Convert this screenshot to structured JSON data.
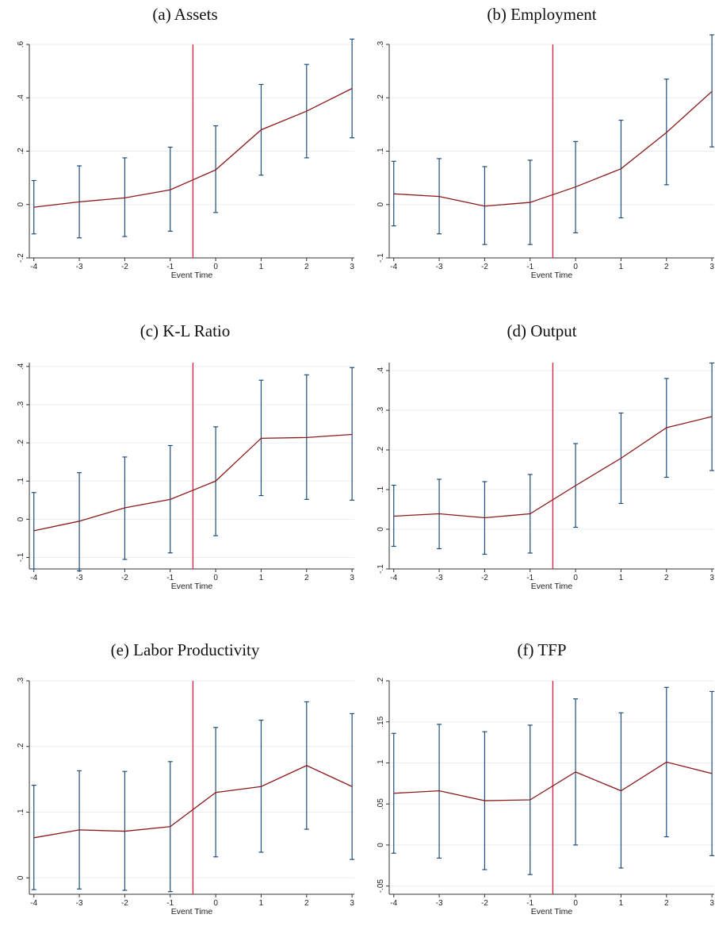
{
  "chart_data": [
    {
      "type": "line",
      "title": "(a) Assets",
      "xlabel": "Event Time",
      "x": [
        -4,
        -3,
        -2,
        -1,
        0,
        1,
        2,
        3
      ],
      "values": [
        -0.01,
        0.01,
        0.025,
        0.055,
        0.13,
        0.28,
        0.35,
        0.435
      ],
      "ci_lower": [
        -0.11,
        -0.125,
        -0.12,
        -0.1,
        -0.03,
        0.11,
        0.175,
        0.25
      ],
      "ci_upper": [
        0.09,
        0.145,
        0.175,
        0.215,
        0.295,
        0.45,
        0.525,
        0.62
      ],
      "yticks": [
        -0.2,
        0,
        0.2,
        0.4,
        0.6
      ],
      "ytick_labels": [
        "-.2",
        "0",
        ".2",
        ".4",
        ".6"
      ],
      "ylim": [
        -0.2,
        0.6
      ],
      "event_line_x": -0.5,
      "grid": true,
      "colors": {
        "estimate": "#8b1a1a",
        "ci": "#1f4e79",
        "event_line": "#e0203f",
        "grid": "#e8edf2"
      }
    },
    {
      "type": "line",
      "title": "(b) Employment",
      "xlabel": "Event Time",
      "x": [
        -4,
        -3,
        -2,
        -1,
        0,
        1,
        2,
        3
      ],
      "values": [
        0.02,
        0.015,
        -0.003,
        0.004,
        0.033,
        0.067,
        0.135,
        0.212
      ],
      "ci_lower": [
        -0.04,
        -0.055,
        -0.075,
        -0.075,
        -0.053,
        -0.025,
        0.037,
        0.108
      ],
      "ci_upper": [
        0.081,
        0.086,
        0.071,
        0.083,
        0.118,
        0.158,
        0.235,
        0.318
      ],
      "yticks": [
        -0.1,
        0,
        0.1,
        0.2,
        0.3
      ],
      "ytick_labels": [
        "-.1",
        "0",
        ".1",
        ".2",
        ".3"
      ],
      "ylim": [
        -0.1,
        0.3
      ],
      "event_line_x": -0.5,
      "grid": true,
      "colors": {
        "estimate": "#8b1a1a",
        "ci": "#1f4e79",
        "event_line": "#e0203f",
        "grid": "#e8edf2"
      }
    },
    {
      "type": "line",
      "title": "(c) K-L Ratio",
      "xlabel": "Event Time",
      "x": [
        -4,
        -3,
        -2,
        -1,
        0,
        1,
        2,
        3
      ],
      "values": [
        -0.03,
        -0.005,
        0.03,
        0.052,
        0.1,
        0.212,
        0.214,
        0.222
      ],
      "ci_lower": [
        -0.13,
        -0.135,
        -0.105,
        -0.088,
        -0.043,
        0.062,
        0.052,
        0.05
      ],
      "ci_upper": [
        0.07,
        0.122,
        0.163,
        0.193,
        0.242,
        0.364,
        0.378,
        0.397
      ],
      "yticks": [
        -0.1,
        0,
        0.1,
        0.2,
        0.3,
        0.4
      ],
      "ytick_labels": [
        "-.1",
        "0",
        ".1",
        ".2",
        ".3",
        ".4"
      ],
      "ylim": [
        -0.13,
        0.41
      ],
      "event_line_x": -0.5,
      "grid": true,
      "colors": {
        "estimate": "#8b1a1a",
        "ci": "#1f4e79",
        "event_line": "#e0203f",
        "grid": "#e8edf2"
      }
    },
    {
      "type": "line",
      "title": "(d) Output",
      "xlabel": "Event Time",
      "x": [
        -4,
        -3,
        -2,
        -1,
        0,
        1,
        2,
        3
      ],
      "values": [
        0.033,
        0.039,
        0.029,
        0.039,
        0.11,
        0.179,
        0.256,
        0.284
      ],
      "ci_lower": [
        -0.043,
        -0.049,
        -0.063,
        -0.06,
        0.005,
        0.065,
        0.131,
        0.148
      ],
      "ci_upper": [
        0.111,
        0.126,
        0.12,
        0.138,
        0.216,
        0.293,
        0.38,
        0.419
      ],
      "yticks": [
        -0.1,
        0,
        0.1,
        0.2,
        0.3,
        0.4
      ],
      "ytick_labels": [
        "-.1",
        "0",
        ".1",
        ".2",
        ".3",
        ".4"
      ],
      "ylim": [
        -0.1,
        0.42
      ],
      "event_line_x": -0.5,
      "grid": true,
      "colors": {
        "estimate": "#8b1a1a",
        "ci": "#1f4e79",
        "event_line": "#e0203f",
        "grid": "#e8edf2"
      }
    },
    {
      "type": "line",
      "title": "(e) Labor Productivity",
      "xlabel": "Event Time",
      "x": [
        -4,
        -3,
        -2,
        -1,
        0,
        1,
        2,
        3
      ],
      "values": [
        0.061,
        0.073,
        0.071,
        0.078,
        0.13,
        0.139,
        0.171,
        0.139
      ],
      "ci_lower": [
        -0.018,
        -0.017,
        -0.019,
        -0.021,
        0.032,
        0.039,
        0.074,
        0.028
      ],
      "ci_upper": [
        0.141,
        0.163,
        0.162,
        0.177,
        0.229,
        0.24,
        0.268,
        0.25
      ],
      "yticks": [
        0,
        0.1,
        0.2,
        0.3
      ],
      "ytick_labels": [
        "0",
        ".1",
        ".2",
        ".3"
      ],
      "ylim": [
        -0.025,
        0.3
      ],
      "event_line_x": -0.5,
      "grid": true,
      "colors": {
        "estimate": "#8b1a1a",
        "ci": "#1f4e79",
        "event_line": "#e0203f",
        "grid": "#e8edf2"
      }
    },
    {
      "type": "line",
      "title": "(f) TFP",
      "xlabel": "Event Time",
      "x": [
        -4,
        -3,
        -2,
        -1,
        0,
        1,
        2,
        3
      ],
      "values": [
        0.063,
        0.066,
        0.054,
        0.055,
        0.089,
        0.066,
        0.101,
        0.087
      ],
      "ci_lower": [
        -0.01,
        -0.016,
        -0.03,
        -0.036,
        0.0,
        -0.028,
        0.01,
        -0.013
      ],
      "ci_upper": [
        0.136,
        0.147,
        0.138,
        0.146,
        0.178,
        0.161,
        0.192,
        0.187
      ],
      "yticks": [
        -0.05,
        0,
        0.05,
        0.1,
        0.15,
        0.2
      ],
      "ytick_labels": [
        "-.05",
        "0",
        ".05",
        ".1",
        ".15",
        ".2"
      ],
      "ylim": [
        -0.06,
        0.2
      ],
      "event_line_x": -0.5,
      "grid": true,
      "colors": {
        "estimate": "#8b1a1a",
        "ci": "#1f4e79",
        "event_line": "#e0203f",
        "grid": "#e8edf2"
      }
    }
  ]
}
